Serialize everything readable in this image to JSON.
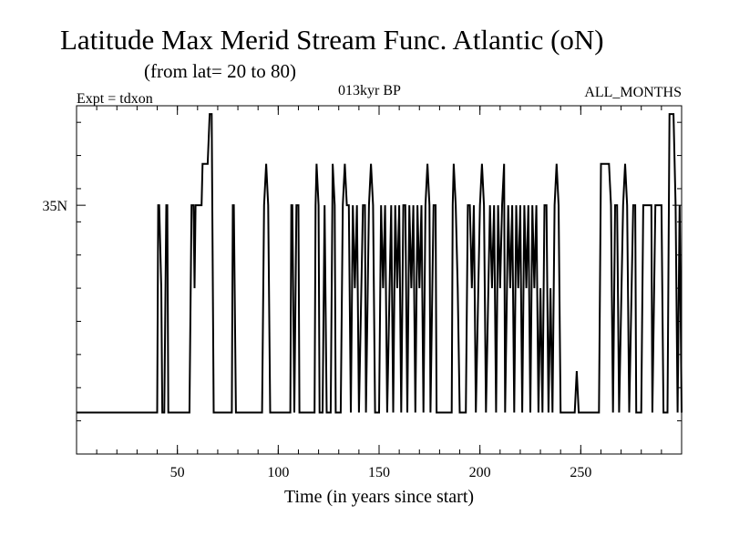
{
  "header": {
    "title": "Latitude Max Merid Stream Func. Atlantic (oN)",
    "subtitle": "(from lat= 20 to 80)",
    "experiment": "Expt = tdxon",
    "period": "013kyr BP",
    "months": "ALL_MONTHS"
  },
  "chart_data": {
    "type": "line",
    "xlabel": "Time (in years since start)",
    "ylabel": "",
    "xlim": [
      0,
      300
    ],
    "ylim": [
      20,
      41
    ],
    "x_ticks": [
      50,
      100,
      150,
      200,
      250
    ],
    "y_ticks": [
      {
        "value": 35,
        "label": "35N"
      }
    ],
    "series": [
      {
        "color": "#000000",
        "points": [
          [
            0,
            22.5
          ],
          [
            40,
            22.5
          ],
          [
            40.5,
            35
          ],
          [
            41,
            35
          ],
          [
            42,
            30
          ],
          [
            42.5,
            22.5
          ],
          [
            43.5,
            22.5
          ],
          [
            44.5,
            35
          ],
          [
            45,
            35
          ],
          [
            45.5,
            22.5
          ],
          [
            56,
            22.5
          ],
          [
            57,
            35
          ],
          [
            58,
            35
          ],
          [
            58.5,
            30
          ],
          [
            59,
            35
          ],
          [
            62,
            35
          ],
          [
            62.5,
            37.5
          ],
          [
            65,
            37.5
          ],
          [
            66,
            40.5
          ],
          [
            67,
            40.5
          ],
          [
            68,
            22.5
          ],
          [
            77,
            22.5
          ],
          [
            77.5,
            35
          ],
          [
            78,
            35
          ],
          [
            79,
            22.5
          ],
          [
            92,
            22.5
          ],
          [
            93,
            35
          ],
          [
            94,
            37.5
          ],
          [
            95,
            35
          ],
          [
            96,
            22.5
          ],
          [
            106,
            22.5
          ],
          [
            106.5,
            35
          ],
          [
            107,
            35
          ],
          [
            108,
            22.5
          ],
          [
            109,
            35
          ],
          [
            110,
            35
          ],
          [
            110.5,
            22.5
          ],
          [
            118,
            22.5
          ],
          [
            118.5,
            35
          ],
          [
            119,
            37.5
          ],
          [
            120,
            35
          ],
          [
            120.5,
            22.5
          ],
          [
            122,
            22.5
          ],
          [
            123,
            35
          ],
          [
            124,
            22.5
          ],
          [
            126,
            22.5
          ],
          [
            127,
            37.5
          ],
          [
            128,
            35
          ],
          [
            128.5,
            22.5
          ],
          [
            131,
            22.5
          ],
          [
            132,
            35
          ],
          [
            133,
            37.5
          ],
          [
            134,
            35
          ],
          [
            135,
            35
          ],
          [
            136,
            22.5
          ],
          [
            137,
            35
          ],
          [
            138,
            30
          ],
          [
            139,
            35
          ],
          [
            140,
            22.5
          ],
          [
            142,
            35
          ],
          [
            143,
            35
          ],
          [
            143.5,
            22.5
          ],
          [
            145,
            35
          ],
          [
            146,
            37.5
          ],
          [
            147,
            35
          ],
          [
            148,
            22.5
          ],
          [
            150,
            22.5
          ],
          [
            151,
            35
          ],
          [
            152,
            30
          ],
          [
            153,
            35
          ],
          [
            154,
            22.5
          ],
          [
            156,
            35
          ],
          [
            157,
            22.5
          ],
          [
            158,
            35
          ],
          [
            159,
            30
          ],
          [
            160,
            35
          ],
          [
            161,
            22.5
          ],
          [
            162,
            35
          ],
          [
            163,
            35
          ],
          [
            164,
            22.5
          ],
          [
            165,
            35
          ],
          [
            166,
            30
          ],
          [
            167,
            35
          ],
          [
            168,
            22.5
          ],
          [
            169,
            35
          ],
          [
            170,
            30
          ],
          [
            171,
            35
          ],
          [
            172,
            22.5
          ],
          [
            173,
            35
          ],
          [
            174,
            37.5
          ],
          [
            175,
            35
          ],
          [
            175.5,
            22.5
          ],
          [
            177,
            35
          ],
          [
            178,
            35
          ],
          [
            178.5,
            22.5
          ],
          [
            186,
            22.5
          ],
          [
            186.5,
            35
          ],
          [
            187,
            37.5
          ],
          [
            188,
            35
          ],
          [
            189,
            30
          ],
          [
            190,
            22.5
          ],
          [
            193,
            22.5
          ],
          [
            194,
            35
          ],
          [
            195,
            35
          ],
          [
            196,
            30
          ],
          [
            197,
            35
          ],
          [
            198,
            22.5
          ],
          [
            200,
            35
          ],
          [
            201,
            37.5
          ],
          [
            202,
            35
          ],
          [
            203,
            22.5
          ],
          [
            205,
            35
          ],
          [
            206,
            30
          ],
          [
            207,
            35
          ],
          [
            208,
            22.5
          ],
          [
            209,
            35
          ],
          [
            210,
            30
          ],
          [
            211,
            35
          ],
          [
            212,
            37.5
          ],
          [
            212.5,
            22.5
          ],
          [
            214,
            35
          ],
          [
            215,
            30
          ],
          [
            216,
            35
          ],
          [
            217,
            22.5
          ],
          [
            218,
            35
          ],
          [
            219,
            30
          ],
          [
            220,
            35
          ],
          [
            221,
            22.5
          ],
          [
            222,
            35
          ],
          [
            223,
            30
          ],
          [
            224,
            35
          ],
          [
            225,
            22.5
          ],
          [
            226,
            35
          ],
          [
            227,
            30
          ],
          [
            228,
            35
          ],
          [
            229,
            22.5
          ],
          [
            230,
            30
          ],
          [
            231,
            22.5
          ],
          [
            232,
            35
          ],
          [
            233,
            35
          ],
          [
            234,
            22.5
          ],
          [
            235,
            30
          ],
          [
            236,
            22.5
          ],
          [
            237,
            35
          ],
          [
            238,
            37.5
          ],
          [
            239,
            35
          ],
          [
            240,
            22.5
          ],
          [
            247,
            22.5
          ],
          [
            248,
            25
          ],
          [
            249,
            22.5
          ],
          [
            259,
            22.5
          ],
          [
            260,
            37.5
          ],
          [
            264,
            37.5
          ],
          [
            265,
            35
          ],
          [
            266,
            22.5
          ],
          [
            267,
            35
          ],
          [
            268,
            35
          ],
          [
            269,
            22.5
          ],
          [
            271,
            35
          ],
          [
            272,
            37.5
          ],
          [
            273,
            35
          ],
          [
            274,
            22.5
          ],
          [
            276,
            35
          ],
          [
            277,
            35
          ],
          [
            277.5,
            22.5
          ],
          [
            280,
            22.5
          ],
          [
            281,
            35
          ],
          [
            285,
            35
          ],
          [
            285.5,
            22.5
          ],
          [
            287,
            35
          ],
          [
            290,
            35
          ],
          [
            291,
            22.5
          ],
          [
            293,
            22.5
          ],
          [
            294,
            40.5
          ],
          [
            296,
            40.5
          ],
          [
            297,
            35
          ],
          [
            298,
            22.5
          ],
          [
            299,
            35
          ],
          [
            300,
            22.5
          ]
        ]
      }
    ]
  }
}
